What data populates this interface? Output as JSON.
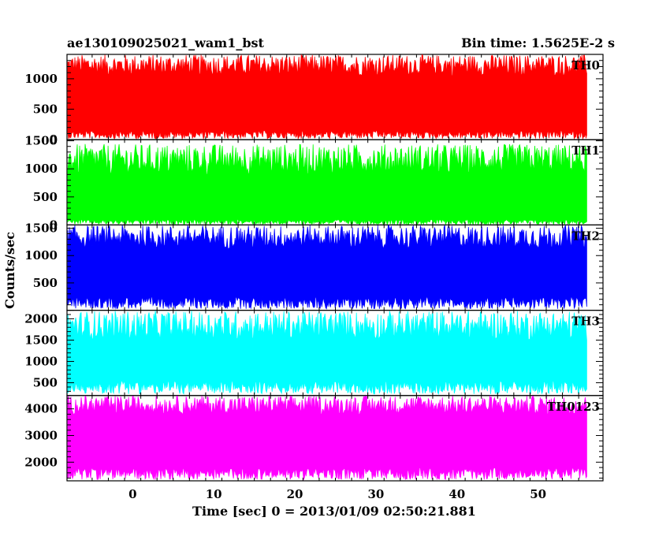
{
  "header": {
    "title": "ae130109025021_wam1_bst",
    "bin_time": "Bin time: 1.5625E-2 s"
  },
  "chart_data": {
    "type": "line",
    "title": "ae130109025021_wam1_bst",
    "xlabel": "Time [sec] 0 = 2013/01/09 02:50:21.881",
    "ylabel": "Counts/sec",
    "xlim": [
      -8.1,
      58.0
    ],
    "x_ticks": [
      0,
      10,
      20,
      30,
      40,
      50
    ],
    "x_tick_labels": [
      "0",
      "10",
      "20",
      "30",
      "40",
      "50"
    ],
    "data_x_range": [
      -8.0,
      56.0
    ],
    "bin_time_s": 0.015625,
    "panels": [
      {
        "name": "TH0",
        "color": "#ff0000",
        "ylim": [
          0,
          1400
        ],
        "ticks": [
          0,
          500,
          1000
        ],
        "tick_labels": [
          "0",
          "500",
          "1000"
        ],
        "typical_low": 150,
        "typical_high": 1150,
        "max": 1400
      },
      {
        "name": "TH1",
        "color": "#00ff00",
        "ylim": [
          0,
          1520
        ],
        "ticks": [
          0,
          500,
          1000,
          1500
        ],
        "tick_labels": [
          "0",
          "500",
          "1000",
          "1500"
        ],
        "typical_low": 100,
        "typical_high": 1050,
        "max": 1450
      },
      {
        "name": "TH2",
        "color": "#0000ff",
        "ylim": [
          0,
          1560
        ],
        "ticks": [
          500,
          1000,
          1500
        ],
        "tick_labels": [
          "500",
          "1000",
          "1500"
        ],
        "typical_low": 250,
        "typical_high": 1250,
        "max": 1560
      },
      {
        "name": "TH3",
        "color": "#00ffff",
        "ylim": [
          200,
          2200
        ],
        "ticks": [
          500,
          1000,
          1500,
          2000
        ],
        "tick_labels": [
          "500",
          "1000",
          "1500",
          "2000"
        ],
        "typical_low": 550,
        "typical_high": 1700,
        "max": 2200
      },
      {
        "name": "TH0123",
        "color": "#ff00ff",
        "ylim": [
          1300,
          4500
        ],
        "ticks": [
          2000,
          3000,
          4000
        ],
        "tick_labels": [
          "2000",
          "3000",
          "4000"
        ],
        "typical_low": 1800,
        "typical_high": 4000,
        "max": 4500
      }
    ]
  }
}
